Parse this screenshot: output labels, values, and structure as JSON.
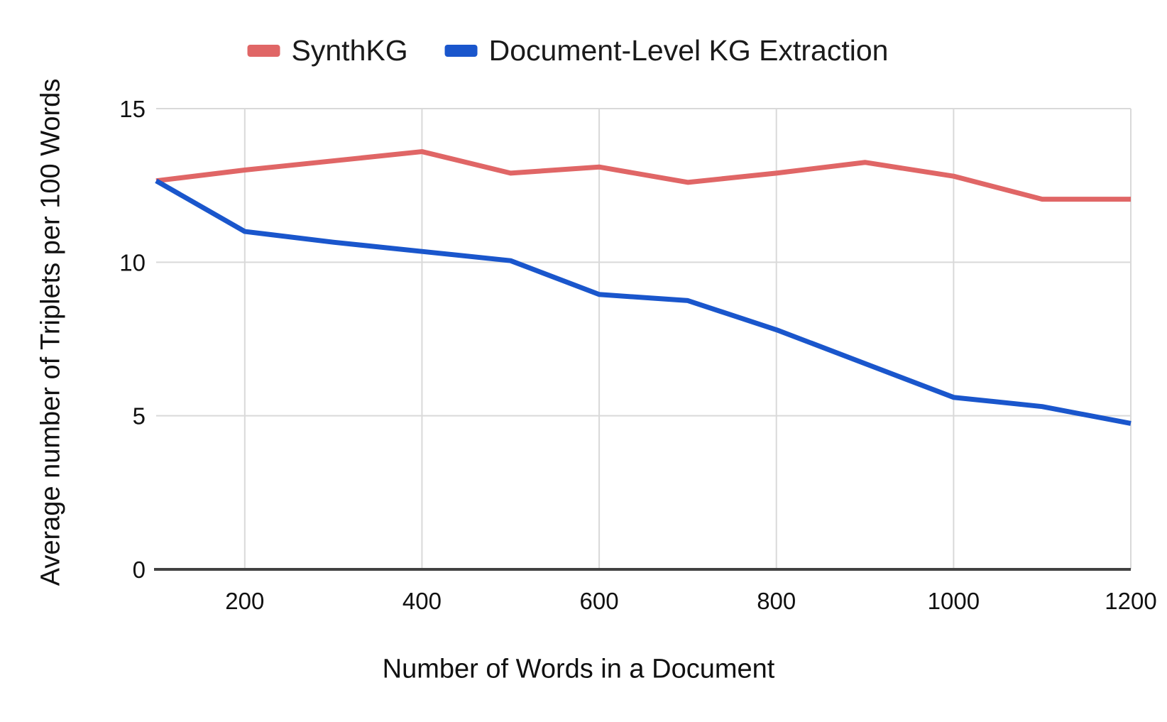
{
  "chart_data": {
    "type": "line",
    "x": [
      100,
      200,
      300,
      400,
      500,
      600,
      700,
      800,
      900,
      1000,
      1100,
      1200
    ],
    "series": [
      {
        "name": "SynthKG",
        "color": "#e06666",
        "values": [
          12.65,
          13.0,
          13.3,
          13.6,
          12.9,
          13.1,
          12.6,
          12.9,
          13.25,
          12.8,
          12.05,
          12.05
        ]
      },
      {
        "name": "Document-Level KG Extraction",
        "color": "#1a56cc",
        "values": [
          12.65,
          11.0,
          10.65,
          10.35,
          10.05,
          8.95,
          8.75,
          7.8,
          6.7,
          5.6,
          5.3,
          4.75
        ]
      }
    ],
    "xlabel": "Number of Words in a Document",
    "ylabel": "Average number of Triplets per 100 Words",
    "xlim": [
      100,
      1200
    ],
    "ylim": [
      0,
      15
    ],
    "xticks": [
      200,
      400,
      600,
      800,
      1000,
      1200
    ],
    "yticks": [
      0,
      5,
      10,
      15
    ],
    "grid": true,
    "legend_position": "top",
    "colors": {
      "gridline": "#d9d9d9",
      "axis_line": "#424242",
      "tick_text": "#111111"
    }
  }
}
